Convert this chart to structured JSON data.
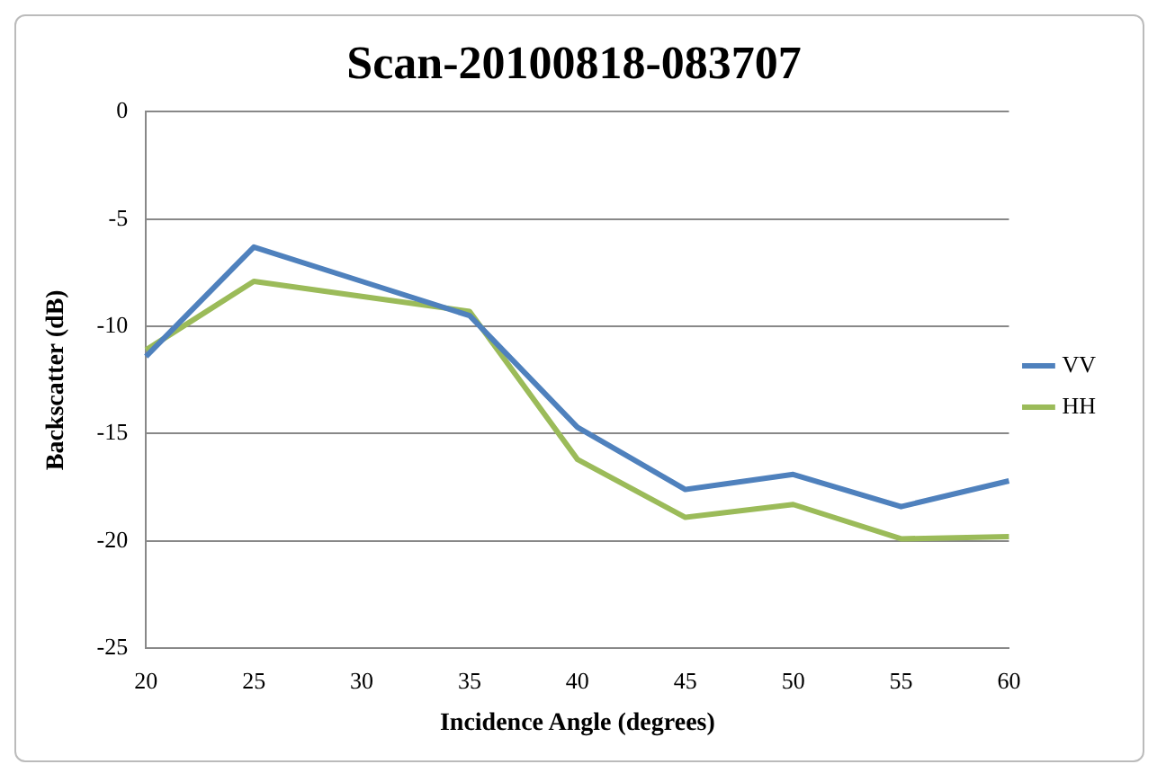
{
  "chart_data": {
    "type": "line",
    "title": "Scan-20100818-083707",
    "xlabel": "Incidence Angle (degrees)",
    "ylabel": "Backscatter (dB)",
    "categories": [
      "20",
      "25",
      "30",
      "35",
      "40",
      "45",
      "50",
      "55",
      "60"
    ],
    "series": [
      {
        "name": "VV",
        "color": "#4f81bd",
        "values": [
          -11.4,
          -6.3,
          -7.9,
          -9.5,
          -14.7,
          -17.6,
          -16.9,
          -18.4,
          -17.2
        ]
      },
      {
        "name": "HH",
        "color": "#9bbb59",
        "values": [
          -11.1,
          -7.9,
          -8.6,
          -9.3,
          -16.2,
          -18.9,
          -18.3,
          -19.9,
          -19.8
        ]
      }
    ],
    "ylim": [
      -25,
      0
    ],
    "yticks": [
      -25,
      -20,
      -15,
      -10,
      -5,
      0
    ],
    "grid": "y",
    "legend": "right",
    "marker": "none",
    "line_style": "solid"
  }
}
